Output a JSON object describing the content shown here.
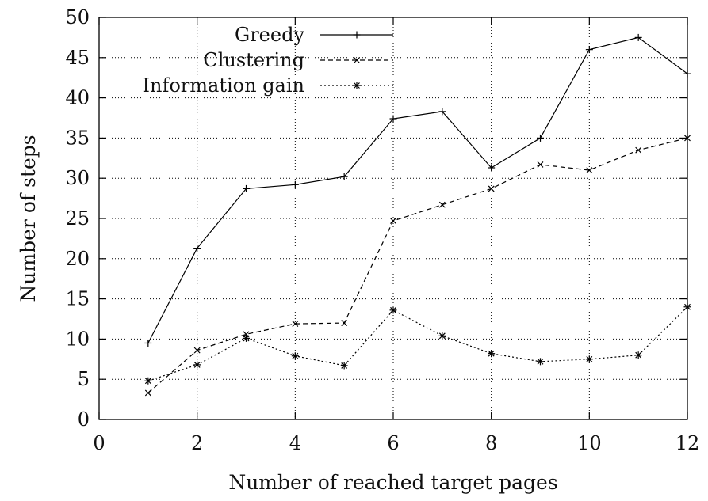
{
  "chart_data": {
    "type": "line",
    "xlabel": "Number of reached target pages",
    "ylabel": "Number of steps",
    "xlim": [
      0,
      12
    ],
    "ylim": [
      0,
      50
    ],
    "xticks": [
      0,
      2,
      4,
      6,
      8,
      10,
      12
    ],
    "yticks": [
      0,
      5,
      10,
      15,
      20,
      25,
      30,
      35,
      40,
      45,
      50
    ],
    "grid": true,
    "legend_position": "top-left",
    "x": [
      1,
      2,
      3,
      4,
      5,
      6,
      7,
      8,
      9,
      10,
      11,
      12
    ],
    "series": [
      {
        "name": "Greedy",
        "marker": "plus",
        "line": "solid",
        "color": "#000000",
        "values": [
          9.5,
          21.3,
          28.7,
          29.2,
          30.2,
          37.4,
          38.3,
          31.3,
          35.0,
          46.0,
          47.5,
          43.0
        ]
      },
      {
        "name": "Clustering",
        "marker": "cross",
        "line": "dashed",
        "color": "#000000",
        "values": [
          3.3,
          8.6,
          10.6,
          11.9,
          12.0,
          24.7,
          26.7,
          28.7,
          31.7,
          31.0,
          33.5,
          35.0
        ]
      },
      {
        "name": "Information gain",
        "marker": "star",
        "line": "dotted",
        "color": "#000000",
        "values": [
          4.8,
          6.8,
          10.1,
          7.9,
          6.7,
          13.6,
          10.4,
          8.2,
          7.2,
          7.5,
          8.0,
          14.0
        ]
      }
    ]
  }
}
